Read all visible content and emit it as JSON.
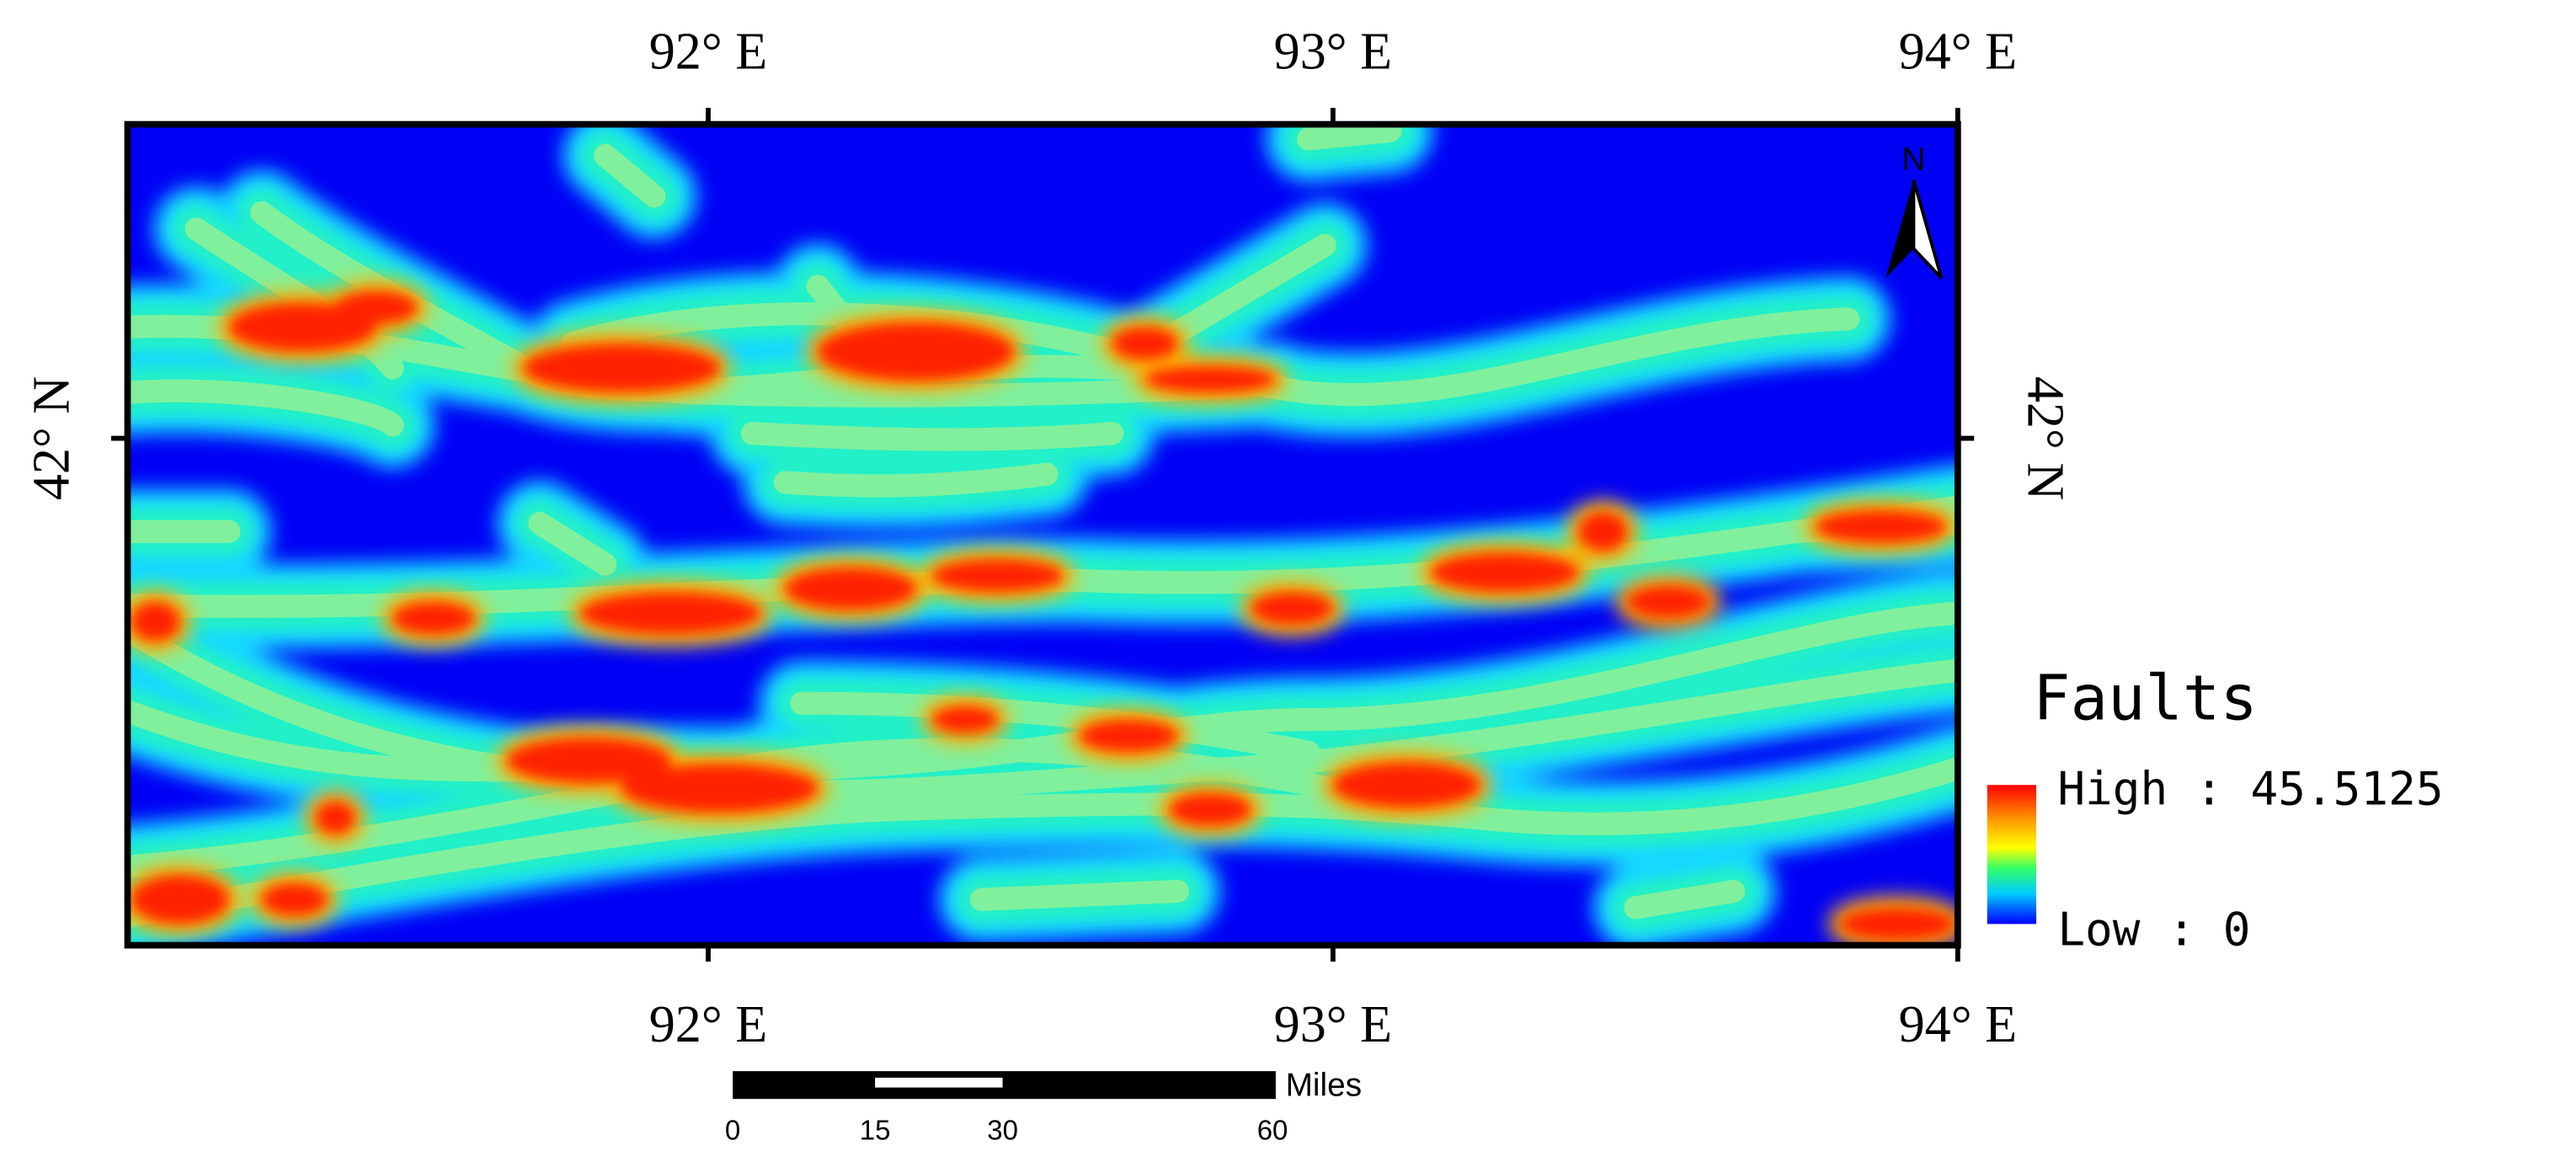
{
  "frame": {
    "top_labels": [
      "92° E",
      "93° E",
      "94° E"
    ],
    "bottom_labels": [
      "92° E",
      "93° E",
      "94° E"
    ],
    "left_label": "42° N",
    "right_label": "42° N"
  },
  "north": "N",
  "legend": {
    "title": "Faults",
    "high": "High : 45.5125",
    "low": "Low : 0"
  },
  "scale_bar": {
    "unit": "Miles",
    "labels": [
      "0",
      "15",
      "30",
      "60"
    ]
  }
}
